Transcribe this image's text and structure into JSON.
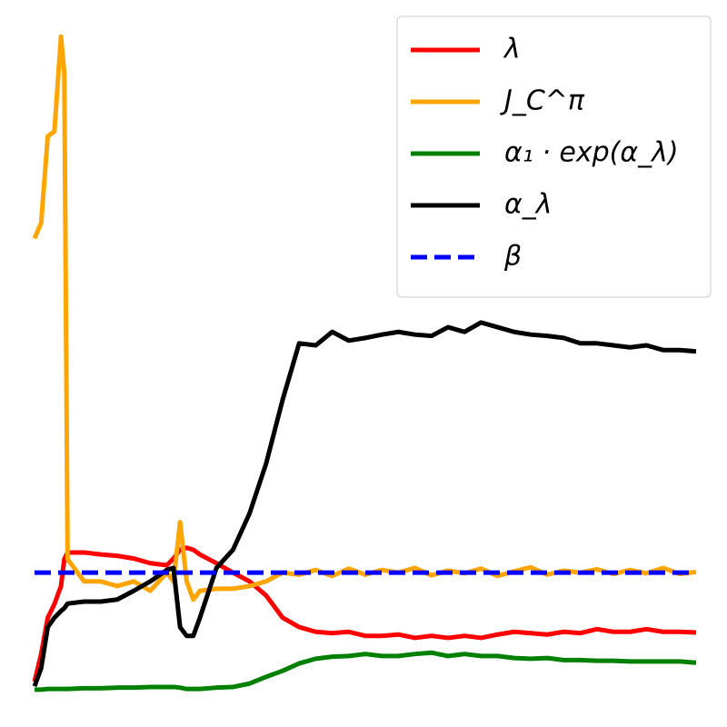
{
  "chart_data": {
    "type": "line",
    "x": [
      0,
      1,
      2,
      3,
      4,
      4.5,
      5,
      7.5,
      10,
      12.5,
      15,
      17.5,
      20,
      21,
      22,
      23,
      24,
      25,
      27.5,
      30,
      32.5,
      35,
      37.5,
      40,
      42.5,
      45,
      47.5,
      50,
      52.5,
      55,
      57.5,
      60,
      62.5,
      65,
      67.5,
      70,
      72.5,
      75,
      77.5,
      80,
      82.5,
      85,
      87.5,
      90,
      92.5,
      95,
      97.5,
      100
    ],
    "xlim": [
      0,
      100
    ],
    "ylim": [
      0,
      100
    ],
    "grid": false,
    "legend": "upper right",
    "series": [
      {
        "name": "λ",
        "color": "#ff0000",
        "values": [
          2.7,
          6.8,
          12.2,
          14.2,
          16.9,
          20.9,
          21.9,
          21.9,
          21.6,
          21.4,
          21.0,
          20.3,
          20.0,
          21.0,
          22.3,
          22.6,
          22.3,
          21.6,
          20.3,
          18.9,
          17.6,
          15.5,
          12.2,
          10.8,
          10.1,
          9.9,
          10.1,
          9.5,
          9.5,
          9.7,
          9.2,
          9.5,
          9.2,
          9.5,
          9.2,
          9.7,
          10.1,
          9.9,
          9.7,
          10.1,
          9.9,
          10.5,
          10.1,
          10.1,
          10.5,
          10.1,
          10.1,
          10.0
        ]
      },
      {
        "name": "J_C^π",
        "color": "#ffa500",
        "values": [
          68.6,
          70.9,
          83.8,
          84.5,
          98.6,
          93.2,
          20.9,
          17.6,
          17.6,
          16.9,
          17.6,
          16.2,
          18.9,
          17.6,
          26.4,
          17.6,
          14.9,
          16.2,
          16.5,
          16.5,
          16.9,
          17.6,
          18.9,
          18.6,
          19.3,
          18.4,
          19.5,
          18.6,
          19.3,
          18.9,
          19.6,
          18.5,
          19.2,
          18.8,
          19.5,
          18.4,
          19.1,
          19.7,
          18.6,
          19.2,
          18.9,
          19.4,
          18.7,
          19.3,
          18.8,
          19.6,
          18.7,
          19.0
        ]
      },
      {
        "name": "α₁ · exp(α_λ)",
        "color": "#008000",
        "values": [
          1.5,
          1.5,
          1.6,
          1.6,
          1.6,
          1.6,
          1.6,
          1.7,
          1.7,
          1.8,
          1.8,
          1.9,
          1.9,
          1.9,
          1.8,
          1.6,
          1.6,
          1.6,
          1.8,
          1.9,
          2.4,
          3.4,
          4.3,
          5.4,
          6.1,
          6.4,
          6.5,
          6.8,
          6.5,
          6.5,
          6.8,
          7.0,
          6.5,
          6.8,
          6.5,
          6.5,
          6.2,
          6.1,
          6.2,
          5.9,
          5.9,
          5.8,
          5.8,
          5.7,
          5.7,
          5.7,
          5.7,
          5.5
        ]
      },
      {
        "name": "α_λ",
        "color": "#000000",
        "values": [
          2.0,
          4.7,
          10.8,
          12.2,
          13.2,
          13.6,
          14.3,
          14.6,
          14.6,
          14.9,
          16.2,
          17.6,
          19.3,
          19.6,
          10.8,
          9.5,
          9.5,
          12.2,
          19.6,
          22.3,
          27.7,
          35.1,
          44.6,
          53.0,
          52.7,
          54.7,
          53.4,
          53.8,
          54.3,
          54.7,
          54.3,
          54.1,
          55.4,
          54.7,
          56.1,
          55.4,
          54.7,
          54.3,
          54.1,
          53.8,
          53.0,
          53.0,
          52.7,
          52.4,
          52.7,
          52.0,
          52.0,
          51.8
        ]
      },
      {
        "name": "β",
        "color": "#0000ff",
        "linestyle": "dashed",
        "values": [
          18.9,
          18.9,
          18.9,
          18.9,
          18.9,
          18.9,
          18.9,
          18.9,
          18.9,
          18.9,
          18.9,
          18.9,
          18.9,
          18.9,
          18.9,
          18.9,
          18.9,
          18.9,
          18.9,
          18.9,
          18.9,
          18.9,
          18.9,
          18.9,
          18.9,
          18.9,
          18.9,
          18.9,
          18.9,
          18.9,
          18.9,
          18.9,
          18.9,
          18.9,
          18.9,
          18.9,
          18.9,
          18.9,
          18.9,
          18.9,
          18.9,
          18.9,
          18.9,
          18.9,
          18.9,
          18.9,
          18.9,
          18.9
        ]
      }
    ]
  }
}
